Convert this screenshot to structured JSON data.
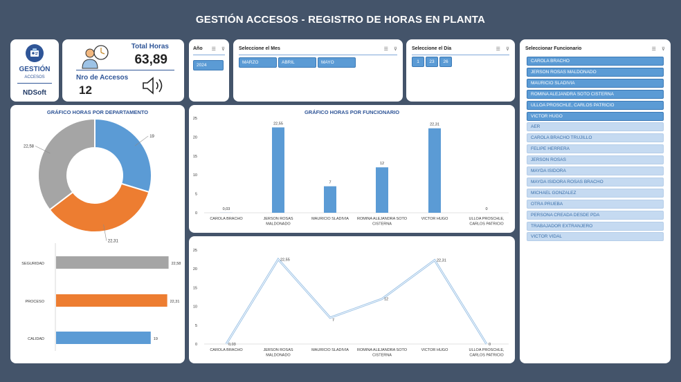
{
  "title": "GESTIÓN ACCESOS - REGISTRO DE HORAS EN PLANTA",
  "logo": {
    "title": "GESTIÓN",
    "subtitle": "ACCESOS",
    "brand": "NDSoft",
    "icon": "badge-icon"
  },
  "kpi": {
    "total_label": "Total Horas",
    "total_value": "63,89",
    "accesos_label": "Nro de Accesos",
    "accesos_value": "12"
  },
  "year_slicer": {
    "label": "Año",
    "items": [
      "2024"
    ]
  },
  "month_slicer": {
    "label": "Seleccione el Mes",
    "items": [
      "MARZO",
      "ABRIL",
      "MAYO"
    ]
  },
  "day_slicer": {
    "label": "Seleccione el Día",
    "items": [
      "1",
      "23",
      "26"
    ]
  },
  "func_slicer": {
    "label": "Seleccionar Funcionario",
    "selected": [
      "CAROLA BRACHO",
      "JERSON ROSAS MALDONADO",
      "MAURICIO SLADIVIA",
      "ROMINA ALEJANDRA SOTO CISTERNA",
      "ULLOA  PROSCHLE, CARLOS PATRICIO",
      "VICTOR HUGO"
    ],
    "unselected": [
      "AER",
      "CAROLA BRACHO TRUJILLO",
      "FELIPE HERRERA",
      "JERSON ROSAS",
      "MAYDA ISIDORA",
      "MAYDA ISIDORA ROSAS BRACHO",
      "MICHAEL GONZALEZ",
      "OTRA PRUEBA",
      "PERSONA CREADA DESDE PDA",
      "TRABAJADOR EXTRANJERO",
      "VICTOR VIDAL"
    ]
  },
  "colors": {
    "blue": "#5b9bd5",
    "orange": "#ed7d31",
    "gray": "#a5a5a5",
    "bg": "#44546a"
  },
  "chart_data": [
    {
      "type": "pie",
      "title": "GRÁFICO HORAS POR DEPARTAMENTO",
      "donut": true,
      "slices": [
        {
          "label": "19",
          "value": 19,
          "color": "#5b9bd5"
        },
        {
          "label": "22,31",
          "value": 22.31,
          "color": "#ed7d31"
        },
        {
          "label": "22,58",
          "value": 22.58,
          "color": "#a5a5a5"
        }
      ]
    },
    {
      "type": "bar",
      "orientation": "horizontal",
      "categories": [
        "SEGURIDAD",
        "PROCESO",
        "CALIDAD"
      ],
      "values": [
        22.58,
        22.31,
        19
      ],
      "labels": [
        "22,58",
        "22,31",
        "19"
      ],
      "colors": [
        "#a5a5a5",
        "#ed7d31",
        "#5b9bd5"
      ],
      "xlim": [
        0,
        25
      ]
    },
    {
      "type": "bar",
      "title": "GRÁFICO HORAS POR FUNCIONARIO",
      "categories": [
        [
          "CAROLA BRACHO"
        ],
        [
          "JERSON ROSAS",
          "MALDONADO"
        ],
        [
          "MAURICIO SLADIVIA"
        ],
        [
          "ROMINA ALEJANDRA SOTO",
          "CISTERNA"
        ],
        [
          "VICTOR HUGO"
        ],
        [
          "ULLOA  PROSCHLE,",
          "CARLOS PATRICIO"
        ]
      ],
      "values": [
        0.03,
        22.55,
        7,
        12,
        22.31,
        0
      ],
      "labels": [
        "0,03",
        "22,55",
        "7",
        "12",
        "22,31",
        "0"
      ],
      "ylim": [
        0,
        25
      ],
      "yticks": [
        "0",
        "5",
        "10",
        "15",
        "20",
        "25"
      ]
    },
    {
      "type": "line",
      "categories": [
        [
          "CAROLA BRACHO"
        ],
        [
          "JERSON ROSAS",
          "MALDONADO"
        ],
        [
          "MAURICIO SLADIVIA"
        ],
        [
          "ROMINA ALEJANDRA SOTO",
          "CISTERNA"
        ],
        [
          "VICTOR HUGO"
        ],
        [
          "ULLOA  PROSCHLE,",
          "CARLOS PATRICIO"
        ]
      ],
      "values": [
        0.03,
        22.55,
        7,
        12,
        22.31,
        0
      ],
      "labels": [
        "0,03",
        "22,55",
        "7",
        "12",
        "22,31",
        "0"
      ],
      "ylim": [
        0,
        25
      ],
      "yticks": [
        "0",
        "5",
        "10",
        "15",
        "20",
        "25"
      ]
    }
  ]
}
